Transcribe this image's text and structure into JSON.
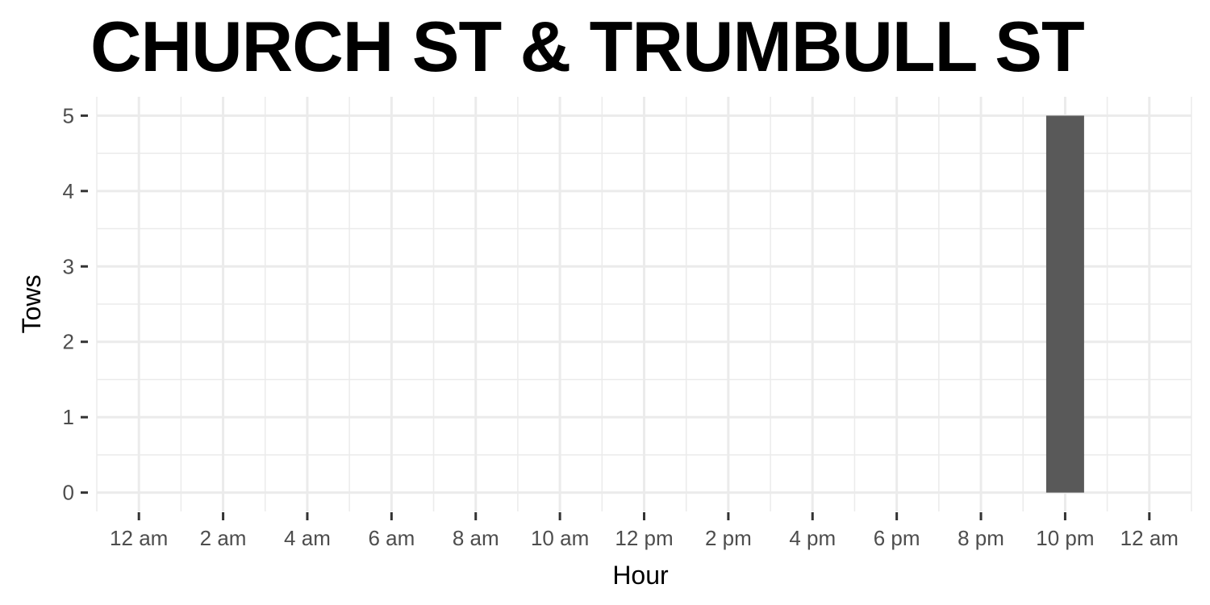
{
  "chart_data": {
    "type": "bar",
    "title": "CHURCH ST & TRUMBULL ST",
    "xlabel": "Hour",
    "ylabel": "Tows",
    "x_tick_labels": [
      "12 am",
      "2 am",
      "4 am",
      "6 am",
      "8 am",
      "10 am",
      "12 pm",
      "2 pm",
      "4 pm",
      "6 pm",
      "8 pm",
      "10 pm",
      "12 am"
    ],
    "x_tick_hours": [
      0,
      2,
      4,
      6,
      8,
      10,
      12,
      14,
      16,
      18,
      20,
      22,
      24
    ],
    "y_ticks": [
      0,
      1,
      2,
      3,
      4,
      5
    ],
    "xlim": [
      -1,
      25
    ],
    "ylim": [
      -0.25,
      5.25
    ],
    "bars": [
      {
        "hour": 22,
        "value": 5
      }
    ],
    "bar_color": "#595959",
    "grid_color": "#ebebeb",
    "grid": true
  }
}
